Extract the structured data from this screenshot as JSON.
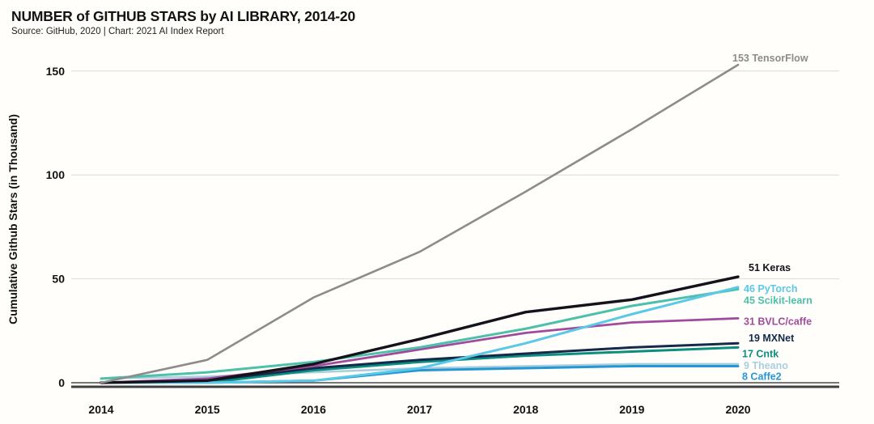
{
  "header": {
    "title": "NUMBER of GITHUB STARS by AI LIBRARY, 2014-20",
    "subtitle": "Source: GitHub, 2020 | Chart: 2021 AI Index Report"
  },
  "chart_data": {
    "type": "line",
    "title": "NUMBER of GITHUB STARS by AI LIBRARY, 2014-20",
    "subtitle": "Source: GitHub, 2020 | Chart: 2021 AI Index Report",
    "xlabel": "",
    "ylabel": "Cumulative Github Stars (in Thousand)",
    "x": [
      2014,
      2015,
      2016,
      2017,
      2018,
      2019,
      2020
    ],
    "x_tick_labels": [
      "2014",
      "2015",
      "2016",
      "2017",
      "2018",
      "2019",
      "2020"
    ],
    "y_ticks": [
      0,
      50,
      100,
      150
    ],
    "y_tick_labels": [
      "0",
      "50",
      "100",
      "150"
    ],
    "ylim": [
      0,
      160
    ],
    "grid": "horizontal",
    "legend_position": "end-of-line-labels",
    "background_color": "#fffefa",
    "gridline_color": "#d9d9d9",
    "zero_line_color": "#4a4a4a",
    "baseline_color": "#3f3f3f",
    "axis_text_color": "#121212",
    "series": [
      {
        "name": "Theano",
        "label": "9 Theano",
        "color": "#a9cede",
        "width": 2.5,
        "values": [
          2,
          3,
          5,
          7,
          8,
          9,
          9
        ],
        "label_dy": 2,
        "label_dx": 0
      },
      {
        "name": "Caffe2",
        "label": "8 Caffe2",
        "color": "#2697d3",
        "width": 3,
        "values": [
          0,
          0,
          1,
          6,
          7,
          8,
          8
        ],
        "label_dy": 13,
        "label_dx": -2
      },
      {
        "name": "Cntk",
        "label": "17 Cntk",
        "color": "#0b8e80",
        "width": 3,
        "values": [
          0,
          0,
          6,
          10,
          13,
          15,
          17
        ],
        "label_dy": 8,
        "label_dx": -2
      },
      {
        "name": "MXNet",
        "label": "19 MXNet",
        "color": "#152a4a",
        "width": 3,
        "values": [
          0,
          1,
          7,
          11,
          14,
          17,
          19
        ],
        "label_dy": -6,
        "label_dx": 6
      },
      {
        "name": "BVLC/caffe",
        "label": "31 BVLC/caffe",
        "color": "#a04b9e",
        "width": 2.8,
        "values": [
          0,
          2,
          8,
          16,
          24,
          29,
          31
        ],
        "label_dy": 4,
        "label_dx": 0
      },
      {
        "name": "Scikit-learn",
        "label": "45 Scikit-learn",
        "color": "#4cc0a9",
        "width": 3,
        "values": [
          2,
          5,
          10,
          17,
          26,
          37,
          45
        ],
        "label_dy": 14,
        "label_dx": 0
      },
      {
        "name": "PyTorch",
        "label": "46 PyTorch",
        "color": "#5ac8e8",
        "width": 3,
        "values": [
          0,
          0,
          1,
          7,
          19,
          33,
          46
        ],
        "label_dy": 2,
        "label_dx": 0
      },
      {
        "name": "Keras",
        "label": "51 Keras",
        "color": "#15121c",
        "width": 3.4,
        "values": [
          0,
          1,
          9,
          21,
          34,
          40,
          51
        ],
        "label_dy": -11,
        "label_dx": 6
      },
      {
        "name": "TensorFlow",
        "label": "153 TensorFlow",
        "color": "#8c8c8c",
        "width": 2.6,
        "values": [
          0,
          11,
          41,
          63,
          92,
          122,
          153
        ],
        "label_dy": -8,
        "label_dx": -14
      }
    ]
  }
}
